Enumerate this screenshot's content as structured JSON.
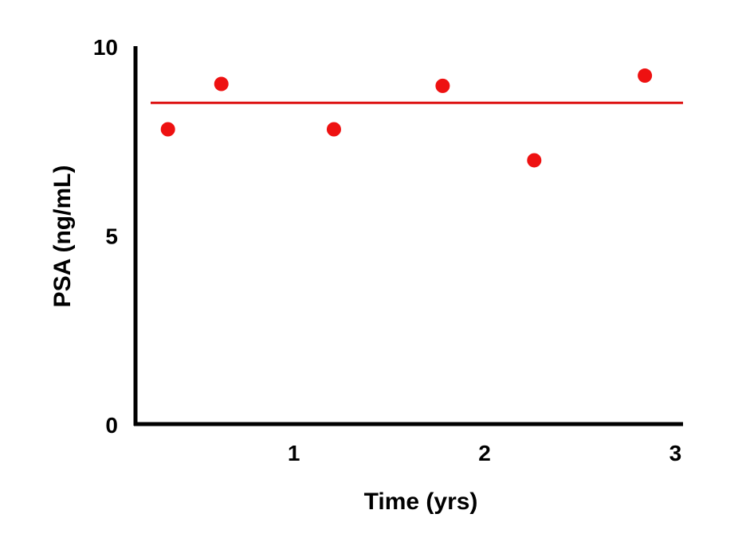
{
  "chart_data": {
    "type": "scatter",
    "xlabel": "Time (yrs)",
    "ylabel": "PSA (ng/mL)",
    "xlim": [
      0.17,
      3.04
    ],
    "ylim": [
      0,
      10
    ],
    "x_ticks": [
      {
        "value": 1,
        "label": "1"
      },
      {
        "value": 2,
        "label": "2"
      },
      {
        "value": 3,
        "label": "3"
      }
    ],
    "y_ticks": [
      {
        "value": 0,
        "label": "0"
      },
      {
        "value": 5,
        "label": "5"
      },
      {
        "value": 10,
        "label": "10"
      }
    ],
    "series": [
      {
        "points": [
          {
            "x": 0.34,
            "y": 7.8
          },
          {
            "x": 0.62,
            "y": 9.0
          },
          {
            "x": 1.21,
            "y": 7.8
          },
          {
            "x": 1.78,
            "y": 8.95
          },
          {
            "x": 2.26,
            "y": 6.98
          },
          {
            "x": 2.84,
            "y": 9.22
          }
        ],
        "color": "#ee1111"
      }
    ],
    "reference_line": {
      "y": 8.5,
      "color": "#dd1111"
    },
    "grid": false,
    "legend": "none"
  }
}
